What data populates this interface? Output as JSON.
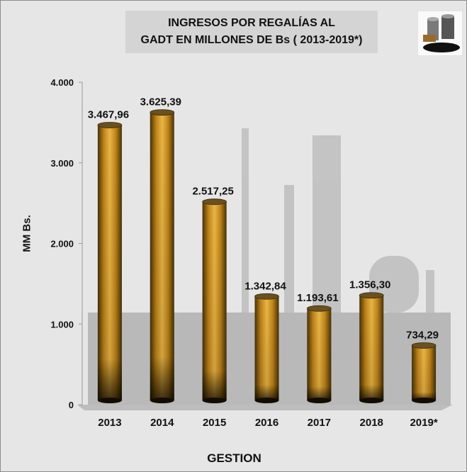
{
  "chart_data": {
    "type": "bar",
    "title_line1": "INGRESOS POR REGALÍAS AL",
    "title_line2": "GADT EN MILLONES DE Bs ( 2013-2019*)",
    "xlabel": "GESTION",
    "ylabel": "MM Bs.",
    "categories": [
      "2013",
      "2014",
      "2015",
      "2016",
      "2017",
      "2018",
      "2019*"
    ],
    "values": [
      3467.96,
      3625.39,
      2517.25,
      1342.84,
      1193.61,
      1356.3,
      734.29
    ],
    "value_labels": [
      "3.467,96",
      "3.625,39",
      "2.517,25",
      "1.342,84",
      "1.193,61",
      "1.356,30",
      "734,29"
    ],
    "ylim": [
      0,
      4000
    ],
    "yticks": [
      0,
      1000,
      2000,
      3000,
      4000
    ],
    "ytick_labels": [
      "0",
      "1.000",
      "2.000",
      "3.000",
      "4.000"
    ],
    "grid": false,
    "legend": "none"
  },
  "colors": {
    "bar_top": "#7a5a1a",
    "bar_mid": "#f0b030",
    "bar_base": "#1a1205",
    "floor": "#bdbdbd"
  },
  "icons": [
    "oil-barrels-icon"
  ]
}
